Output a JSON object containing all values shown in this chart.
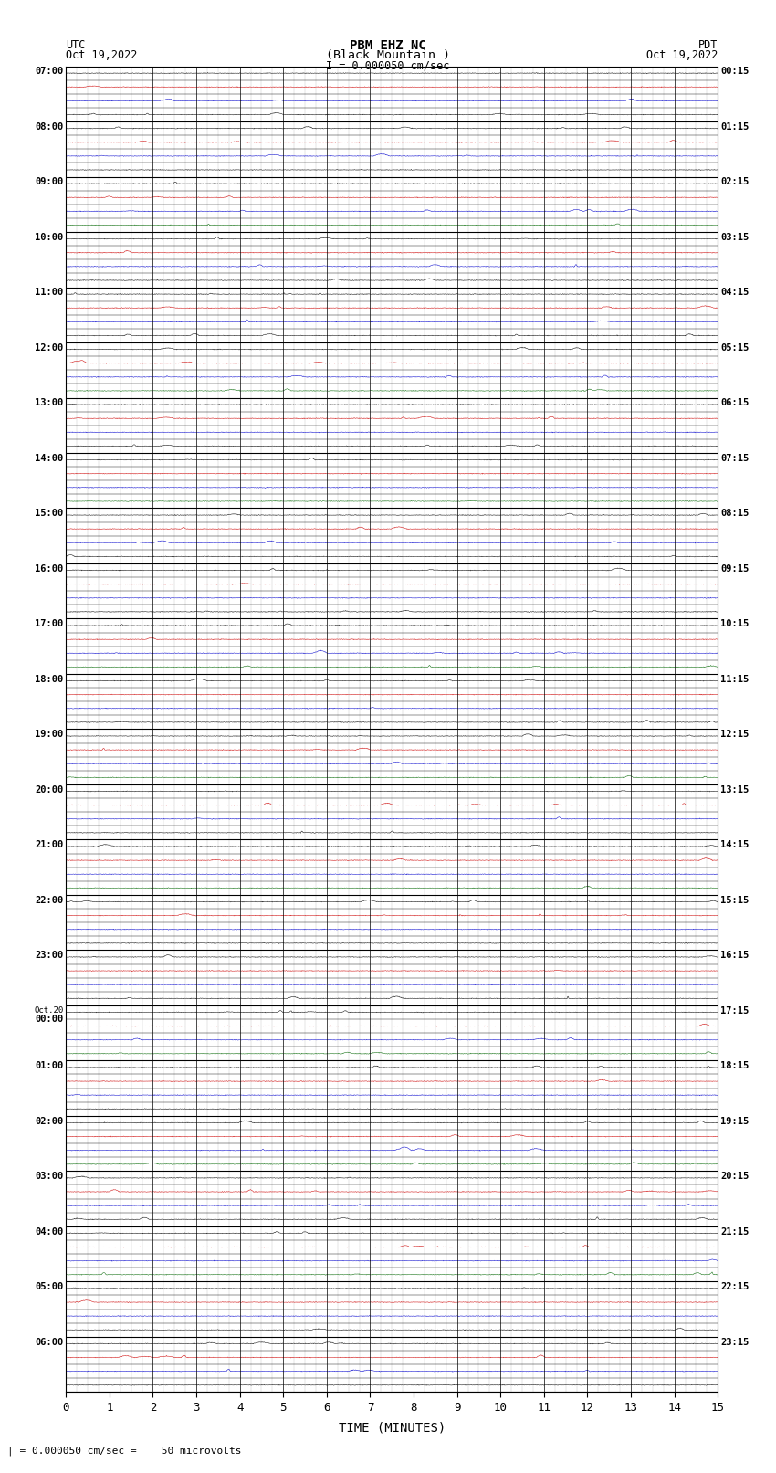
{
  "title_line1": "PBM EHZ NC",
  "title_line2": "(Black Mountain )",
  "scale_label": "I = 0.000050 cm/sec",
  "footer_label": "| = 0.000050 cm/sec =    50 microvolts",
  "xlabel": "TIME (MINUTES)",
  "left_times": [
    "07:00",
    "",
    "",
    "",
    "08:00",
    "",
    "",
    "",
    "09:00",
    "",
    "",
    "",
    "10:00",
    "",
    "",
    "",
    "11:00",
    "",
    "",
    "",
    "12:00",
    "",
    "",
    "",
    "13:00",
    "",
    "",
    "",
    "14:00",
    "",
    "",
    "",
    "15:00",
    "",
    "",
    "",
    "16:00",
    "",
    "",
    "",
    "17:00",
    "",
    "",
    "",
    "18:00",
    "",
    "",
    "",
    "19:00",
    "",
    "",
    "",
    "20:00",
    "",
    "",
    "",
    "21:00",
    "",
    "",
    "",
    "22:00",
    "",
    "",
    "",
    "23:00",
    "",
    "",
    "",
    "Oct.20\n00:00",
    "",
    "",
    "",
    "01:00",
    "",
    "",
    "",
    "02:00",
    "",
    "",
    "",
    "03:00",
    "",
    "",
    "",
    "04:00",
    "",
    "",
    "",
    "05:00",
    "",
    "",
    "",
    "06:00",
    "",
    "",
    ""
  ],
  "right_times": [
    "00:15",
    "",
    "",
    "",
    "01:15",
    "",
    "",
    "",
    "02:15",
    "",
    "",
    "",
    "03:15",
    "",
    "",
    "",
    "04:15",
    "",
    "",
    "",
    "05:15",
    "",
    "",
    "",
    "06:15",
    "",
    "",
    "",
    "07:15",
    "",
    "",
    "",
    "08:15",
    "",
    "",
    "",
    "09:15",
    "",
    "",
    "",
    "10:15",
    "",
    "",
    "",
    "11:15",
    "",
    "",
    "",
    "12:15",
    "",
    "",
    "",
    "13:15",
    "",
    "",
    "",
    "14:15",
    "",
    "",
    "",
    "15:15",
    "",
    "",
    "",
    "16:15",
    "",
    "",
    "",
    "17:15",
    "",
    "",
    "",
    "18:15",
    "",
    "",
    "",
    "19:15",
    "",
    "",
    "",
    "20:15",
    "",
    "",
    "",
    "21:15",
    "",
    "",
    "",
    "22:15",
    "",
    "",
    "",
    "23:15",
    "",
    "",
    ""
  ],
  "row_colors": [
    "#000000",
    "#cc0000",
    "#0000cc",
    "#000000",
    "#000000",
    "#cc0000",
    "#0000cc",
    "#000000",
    "#000000",
    "#cc0000",
    "#0000cc",
    "#006600",
    "#000000",
    "#cc0000",
    "#0000cc",
    "#000000",
    "#000000",
    "#cc0000",
    "#0000cc",
    "#000000",
    "#000000",
    "#cc0000",
    "#0000cc",
    "#006600",
    "#000000",
    "#cc0000",
    "#0000cc",
    "#000000",
    "#000000",
    "#cc0000",
    "#0000cc",
    "#006600",
    "#000000",
    "#cc0000",
    "#0000cc",
    "#000000",
    "#000000",
    "#cc0000",
    "#0000cc",
    "#000000",
    "#000000",
    "#cc0000",
    "#0000cc",
    "#006600",
    "#000000",
    "#cc0000",
    "#0000cc",
    "#000000",
    "#000000",
    "#cc0000",
    "#0000cc",
    "#006600",
    "#000000",
    "#cc0000",
    "#0000cc",
    "#000000",
    "#000000",
    "#cc0000",
    "#0000cc",
    "#006600",
    "#000000",
    "#cc0000",
    "#0000cc",
    "#000000",
    "#000000",
    "#cc0000",
    "#0000cc",
    "#000000",
    "#000000",
    "#cc0000",
    "#0000cc",
    "#006600",
    "#000000",
    "#cc0000",
    "#0000cc",
    "#000000",
    "#000000",
    "#cc0000",
    "#0000cc",
    "#006600",
    "#000000",
    "#cc0000",
    "#0000cc",
    "#000000",
    "#000000",
    "#cc0000",
    "#0000cc",
    "#006600",
    "#000000",
    "#cc0000",
    "#0000cc",
    "#000000",
    "#000000",
    "#cc0000",
    "#0000cc",
    "#000000"
  ],
  "num_rows": 96,
  "minutes_per_row": 15,
  "background_color": "#ffffff",
  "grid_color": "#888888",
  "figsize": [
    8.5,
    16.13
  ],
  "dpi": 100
}
